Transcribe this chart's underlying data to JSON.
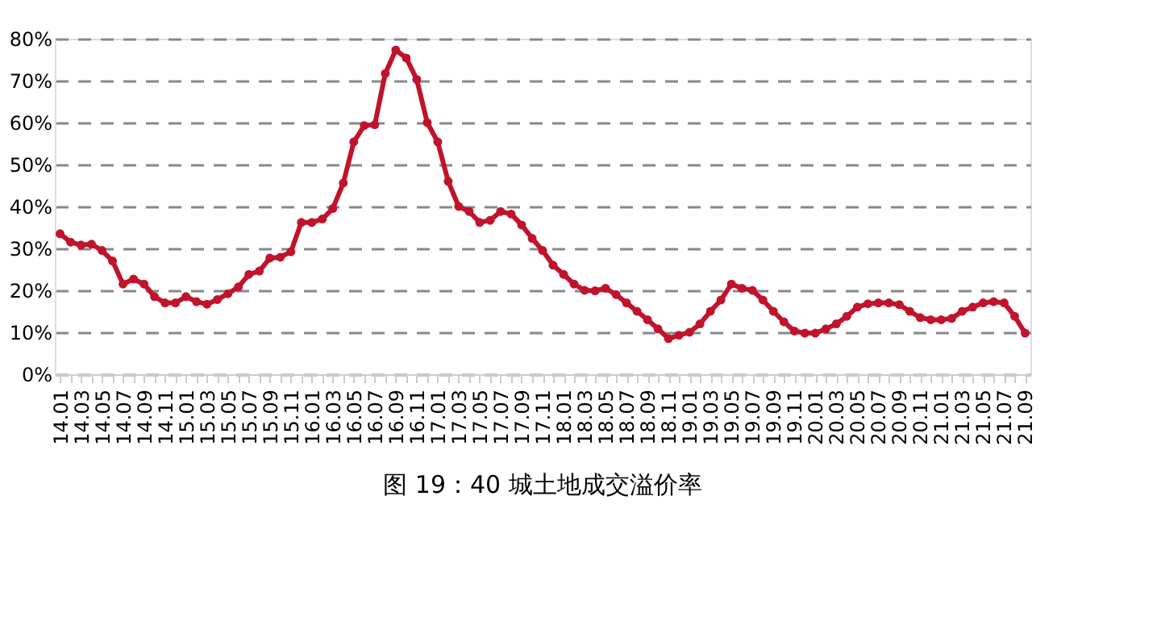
{
  "chart_data": {
    "type": "line",
    "title": "图 19：40 城土地成交溢价率",
    "categories": [
      "14.01",
      null,
      "14.03",
      null,
      "14.05",
      null,
      "14.07",
      null,
      "14.09",
      null,
      "14.11",
      null,
      "15.01",
      null,
      "15.03",
      null,
      "15.05",
      null,
      "15.07",
      null,
      "15.09",
      null,
      "15.11",
      null,
      "16.01",
      null,
      "16.03",
      null,
      "16.05",
      null,
      "16.07",
      null,
      "16.09",
      null,
      "16.11",
      null,
      "17.01",
      null,
      "17.03",
      null,
      "17.05",
      null,
      "17.07",
      null,
      "17.09",
      null,
      "17.11",
      null,
      "18.01",
      null,
      "18.03",
      null,
      "18.05",
      null,
      "18.07",
      null,
      "18.09",
      null,
      "18.11",
      null,
      "19.01",
      null,
      "19.03",
      null,
      "19.05",
      null,
      "19.07",
      null,
      "19.09",
      null,
      "19.11",
      null,
      "20.01",
      null,
      "20.03",
      null,
      "20.05",
      null,
      "20.07",
      null,
      "20.09",
      null,
      "20.11",
      null,
      "21.01",
      null,
      "21.03",
      null,
      "21.05",
      null,
      "21.07",
      null,
      "21.09"
    ],
    "series": [
      {
        "color": "#c0142c",
        "values": [
          33.5,
          31.5,
          30.8,
          31,
          29.5,
          27,
          21.5,
          22.7,
          21.5,
          18.5,
          17,
          17,
          18.5,
          17.3,
          16.7,
          17.8,
          19.2,
          20.8,
          23.8,
          24.6,
          27.7,
          27.9,
          29.2,
          36.2,
          36.2,
          37,
          39.5,
          45.6,
          55.4,
          59.3,
          59.5,
          71.7,
          77.3,
          75.4,
          70.3,
          60,
          55.4,
          46,
          40,
          38.8,
          36.2,
          36.7,
          38.8,
          38.2,
          35.6,
          32.4,
          29.5,
          26,
          23.8,
          21.5,
          20,
          19.9,
          20.5,
          19,
          17,
          15,
          13,
          10.8,
          8.5,
          9.3,
          10,
          12,
          15,
          17.7,
          21.5,
          20.5,
          20,
          17.7,
          15,
          12.5,
          10.3,
          9.8,
          9.8,
          10.8,
          12,
          13.8,
          16,
          16.8,
          17,
          17,
          16.6,
          15,
          13.5,
          13,
          13,
          13.3,
          15,
          16,
          17,
          17.3,
          17,
          13.8,
          9.8
        ]
      }
    ],
    "ylim": [
      0,
      80
    ],
    "yticks": [
      {
        "value": 0,
        "label": "0%"
      },
      {
        "value": 10,
        "label": "10%"
      },
      {
        "value": 20,
        "label": "20%"
      },
      {
        "value": 30,
        "label": "30%"
      },
      {
        "value": 40,
        "label": "40%"
      },
      {
        "value": 50,
        "label": "50%"
      },
      {
        "value": 60,
        "label": "60%"
      },
      {
        "value": 70,
        "label": "70%"
      },
      {
        "value": 80,
        "label": "80%"
      }
    ],
    "grid": "y",
    "marker": "circle",
    "line_style": "solid"
  }
}
